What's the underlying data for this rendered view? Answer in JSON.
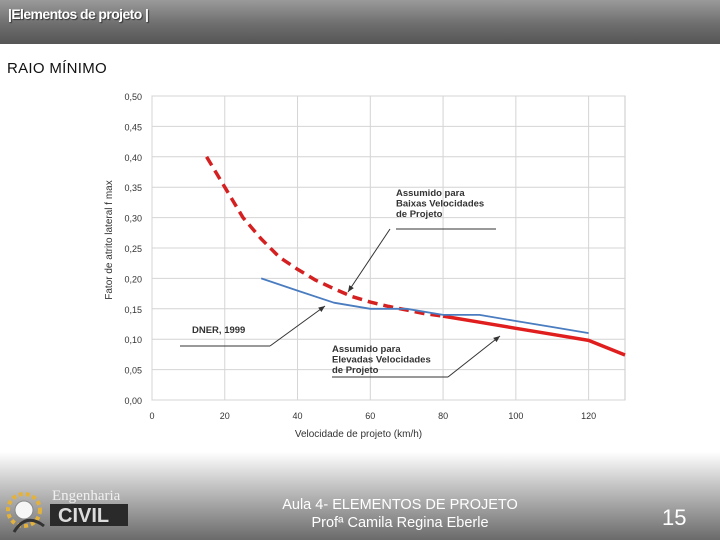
{
  "header": {
    "title": "|Elementos de projeto |"
  },
  "section": {
    "title": "RAIO MÍNIMO"
  },
  "chart_data": {
    "type": "line",
    "xlabel": "Velocidade de projeto (km/h)",
    "ylabel": "Fator de atrito lateral f max",
    "xlim": [
      0,
      130
    ],
    "ylim": [
      0,
      0.5
    ],
    "x_ticks": [
      0,
      20,
      40,
      60,
      80,
      100,
      120
    ],
    "y_ticks": [
      "0,00",
      "0,05",
      "0,10",
      "0,15",
      "0,20",
      "0,25",
      "0,30",
      "0,35",
      "0,40",
      "0,45",
      "0,50"
    ],
    "grid": true,
    "series": [
      {
        "name": "Assumido para Baixas Velocidades de Projeto",
        "style": "dashed",
        "color": "#d42020",
        "x": [
          15,
          20,
          25,
          30,
          35,
          40,
          45,
          50,
          55,
          60,
          65,
          70,
          75,
          80
        ],
        "y": [
          0.4,
          0.35,
          0.3,
          0.265,
          0.235,
          0.215,
          0.197,
          0.183,
          0.17,
          0.161,
          0.154,
          0.148,
          0.142,
          0.138
        ]
      },
      {
        "name": "Assumido para Elevadas Velocidades de Projeto",
        "style": "solid",
        "color": "#e01e1e",
        "x": [
          80,
          90,
          100,
          110,
          120,
          130
        ],
        "y": [
          0.138,
          0.128,
          0.118,
          0.108,
          0.098,
          0.074
        ]
      },
      {
        "name": "DNER, 1999",
        "style": "solid",
        "color": "#4a7cc0",
        "x": [
          30,
          40,
          50,
          60,
          70,
          80,
          90,
          100,
          110,
          120
        ],
        "y": [
          0.2,
          0.18,
          0.16,
          0.15,
          0.15,
          0.14,
          0.14,
          0.13,
          0.12,
          0.11
        ]
      }
    ],
    "annotations": [
      {
        "lines": [
          "Assumido para",
          "Baixas Velocidades",
          "de Projeto"
        ]
      },
      {
        "lines": [
          "DNER, 1999"
        ]
      },
      {
        "lines": [
          "Assumido para",
          "Elevadas Velocidades",
          "de Projeto"
        ]
      }
    ]
  },
  "footer": {
    "line1": "Aula 4- ELEMENTOS DE PROJETO",
    "line2": "Profª Camila Regina Eberle",
    "page": "15"
  },
  "logo": {
    "line1": "Engenharia",
    "line2": "CIVIL"
  }
}
